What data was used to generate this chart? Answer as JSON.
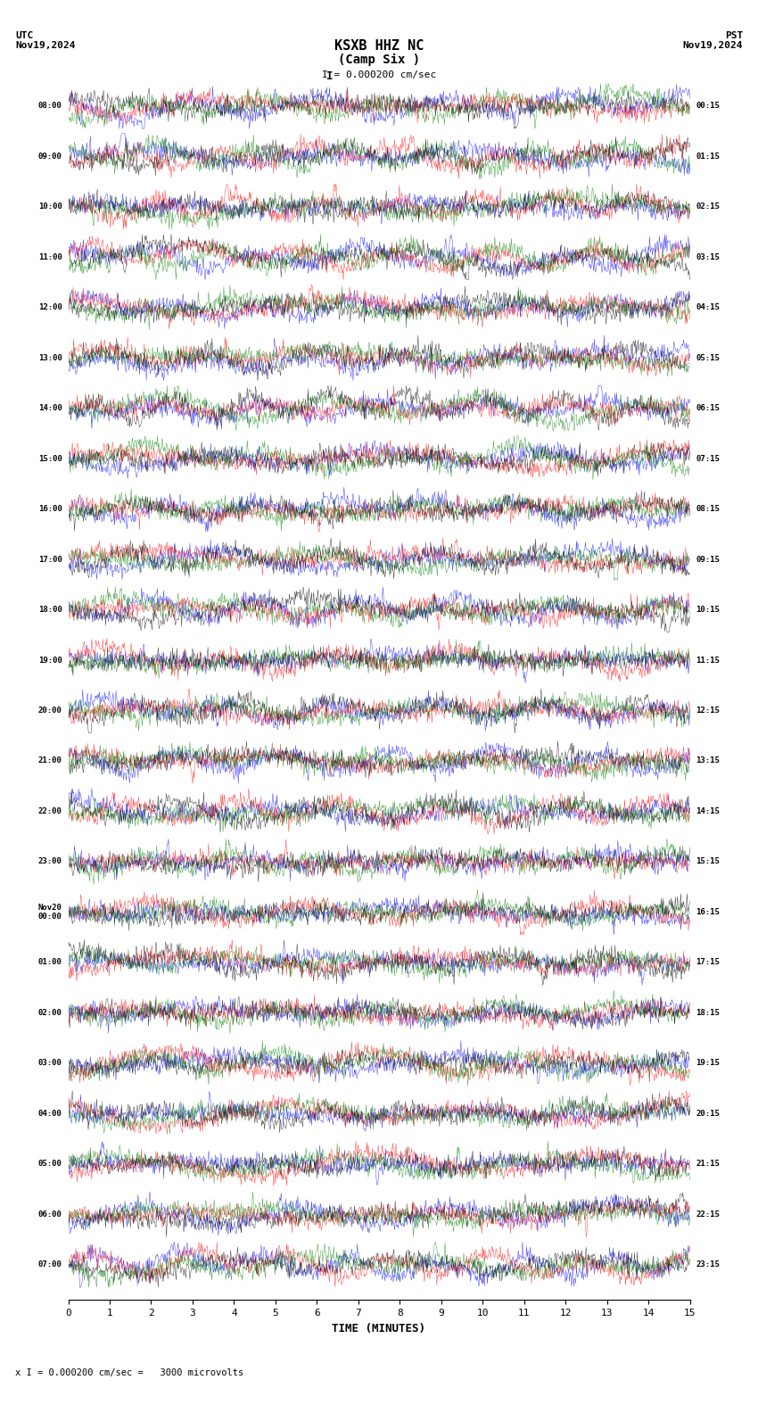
{
  "title_line1": "KSXB HHZ NC",
  "title_line2": "(Camp Six )",
  "scale_label": "I = 0.000200 cm/sec",
  "footer_label": "x I = 0.000200 cm/sec =   3000 microvolts",
  "utc_label": "UTC\nNov19,2024",
  "pst_label": "PST\nNov19,2024",
  "xlabel": "TIME (MINUTES)",
  "left_times": [
    "08:00",
    "09:00",
    "10:00",
    "11:00",
    "12:00",
    "13:00",
    "14:00",
    "15:00",
    "16:00",
    "17:00",
    "18:00",
    "19:00",
    "20:00",
    "21:00",
    "22:00",
    "23:00",
    "Nov20\n00:00",
    "01:00",
    "02:00",
    "03:00",
    "04:00",
    "05:00",
    "06:00",
    "07:00"
  ],
  "right_times": [
    "00:15",
    "01:15",
    "02:15",
    "03:15",
    "04:15",
    "05:15",
    "06:15",
    "07:15",
    "08:15",
    "09:15",
    "10:15",
    "11:15",
    "12:15",
    "13:15",
    "14:15",
    "15:15",
    "16:15",
    "17:15",
    "18:15",
    "19:15",
    "20:15",
    "21:15",
    "22:15",
    "23:15"
  ],
  "n_rows": 24,
  "n_cols": 900,
  "bg_color": "#ffffff",
  "trace_colors": [
    "#0000ff",
    "#ff0000",
    "#008000",
    "#000000"
  ],
  "time_minutes": 15,
  "xticks": [
    0,
    1,
    2,
    3,
    4,
    5,
    6,
    7,
    8,
    9,
    10,
    11,
    12,
    13,
    14,
    15
  ],
  "figsize": [
    8.5,
    15.84
  ],
  "dpi": 100
}
